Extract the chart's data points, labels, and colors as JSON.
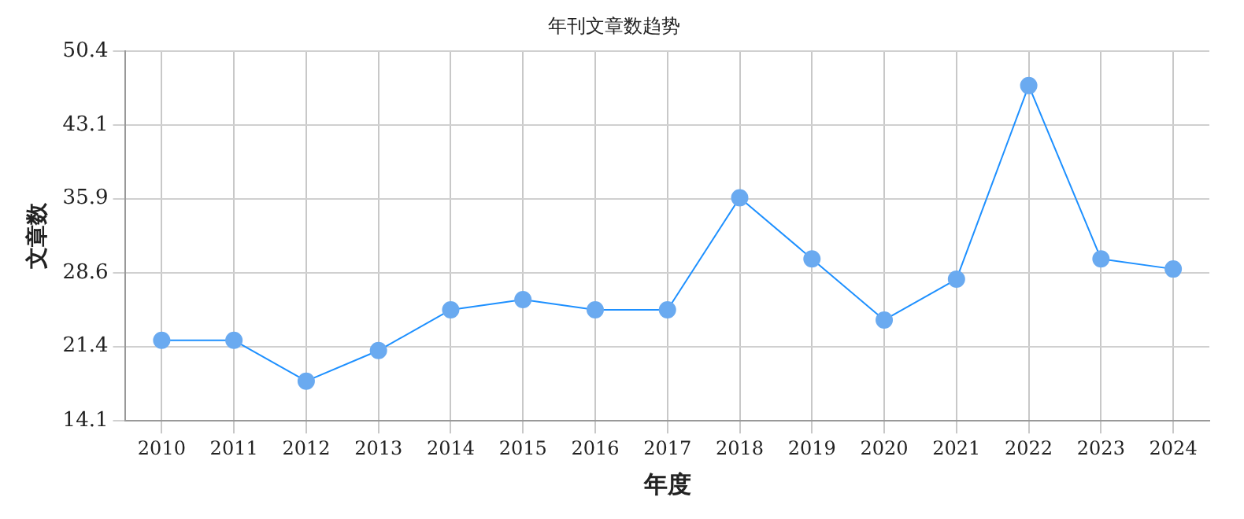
{
  "chart_data": {
    "type": "line",
    "title": "年刊文章数趋势",
    "xlabel": "年度",
    "ylabel": "文章数",
    "categories": [
      "2010",
      "2011",
      "2012",
      "2013",
      "2014",
      "2015",
      "2016",
      "2017",
      "2018",
      "2019",
      "2020",
      "2021",
      "2022",
      "2023",
      "2024"
    ],
    "series": [
      {
        "color": "#1e90ff",
        "values": [
          22,
          22,
          18,
          21,
          25,
          26,
          25,
          25,
          36,
          30,
          24,
          28,
          47,
          30,
          29
        ]
      }
    ],
    "ylim": [
      14.1,
      50.4
    ],
    "yticks": [
      14.1,
      21.4,
      28.6,
      35.9,
      43.1,
      50.4
    ],
    "grid": true,
    "marker": "circle",
    "line_style": "solid",
    "legend": false
  }
}
